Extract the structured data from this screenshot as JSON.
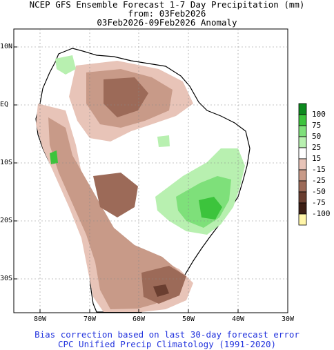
{
  "title": {
    "line1": "NCEP GFS Ensemble Forecast 1-7 Day Precipitation (mm)",
    "line2": "from: 03Feb2026",
    "line3": "03Feb2026-09Feb2026 Anomaly"
  },
  "footer": {
    "line1": "Bias correction based on last 30-day forecast error",
    "line2": "CPC Unified Precip Climatology (1991-2020)"
  },
  "lat_labels": [
    "10N",
    "EQ",
    "10S",
    "20S",
    "30S"
  ],
  "lon_labels": [
    "80W",
    "70W",
    "60W",
    "50W",
    "40W",
    "30W"
  ],
  "legend": {
    "labels": [
      "100",
      "75",
      "50",
      "25",
      "15",
      "-15",
      "-25",
      "-50",
      "-75",
      "-100"
    ],
    "colors": [
      "#0c8a1e",
      "#3cc43c",
      "#7ee07a",
      "#b8f0b0",
      "#ffffff",
      "#e8c4b8",
      "#c89a88",
      "#9c6a58",
      "#6a3e30",
      "#3c1e14",
      "#fff5a8"
    ]
  },
  "colors": {
    "land_base": "#ffffff",
    "dry_light": "#e8c4b8",
    "dry_mid": "#c89a88",
    "dry_dark": "#9c6a58",
    "wet_light": "#b8f0b0",
    "wet_mid": "#7ee07a",
    "wet_dark": "#3cc43c"
  }
}
